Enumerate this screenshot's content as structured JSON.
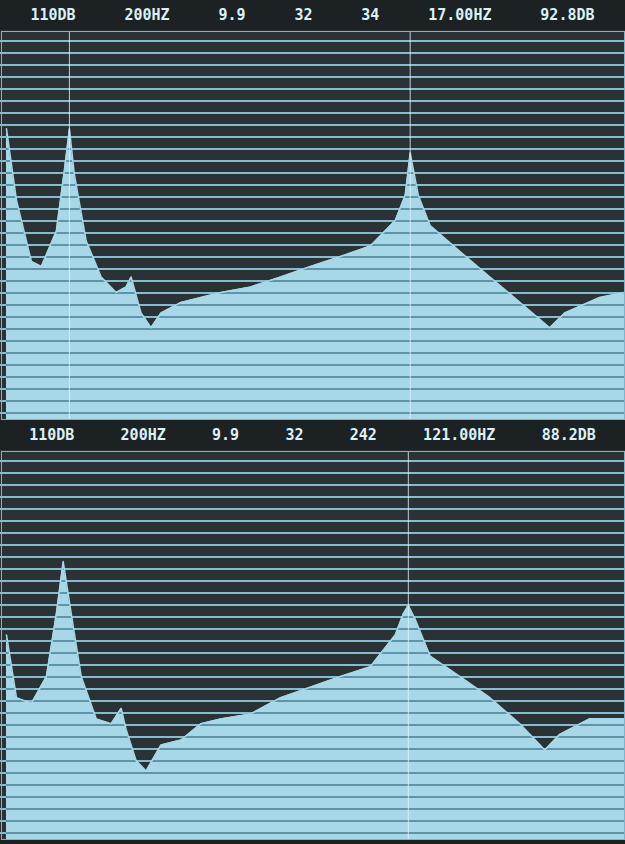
{
  "chart_data": [
    {
      "type": "area",
      "header": [
        "110DB",
        "200HZ",
        "9.9",
        "32",
        "34",
        "17.00HZ",
        "92.8DB"
      ],
      "x": [
        0.8,
        2.4,
        4.8,
        6.4,
        8.8,
        10.1,
        10.9,
        11.7,
        13.6,
        16,
        18.4,
        20,
        20.8,
        22.4,
        24,
        25.6,
        28.8,
        32,
        35.2,
        40,
        44.8,
        49.6,
        54.4,
        59.2,
        63.2,
        64.8,
        65.6,
        66.9,
        68.8,
        73.6,
        78.4,
        83.2,
        88,
        90.4,
        96,
        100
      ],
      "values": [
        96.2,
        86.1,
        77.4,
        76.7,
        81.7,
        90.4,
        96.2,
        89.7,
        80.3,
        75.2,
        73.0,
        73.8,
        75.2,
        70.1,
        68.0,
        70.1,
        71.6,
        72.3,
        73.0,
        73.8,
        75.2,
        76.7,
        78.1,
        79.6,
        83.2,
        86.8,
        92.8,
        86.8,
        82.5,
        78.8,
        75.2,
        71.6,
        68.0,
        70.1,
        72.3,
        73.0
      ],
      "cursor_x": [
        10.9,
        65.6
      ],
      "xlim": [
        0,
        100
      ],
      "ylim": [
        55,
        110
      ],
      "tick_labels": false,
      "grid": true,
      "color": "#a8d8e8"
    },
    {
      "type": "area",
      "header": [
        "110DB",
        "200HZ",
        "9.9",
        "32",
        "242",
        "121.00HZ",
        "88.2DB"
      ],
      "x": [
        0.8,
        2.4,
        4.8,
        7.2,
        8.8,
        9.9,
        11.2,
        12.8,
        15.2,
        17.6,
        19.2,
        20,
        21.6,
        23.2,
        25.6,
        28.8,
        32,
        35.2,
        40,
        44.8,
        49.6,
        54.4,
        59.2,
        63.2,
        64.5,
        65.3,
        66.4,
        68.8,
        73.6,
        78.4,
        83.2,
        87.2,
        89.6,
        94.4,
        100
      ],
      "values": [
        84.0,
        75.1,
        74.3,
        78.1,
        87.0,
        94.4,
        87.0,
        78.1,
        72.1,
        71.4,
        73.6,
        70.6,
        66.2,
        64.7,
        68.4,
        69.1,
        71.4,
        72.1,
        72.8,
        75.1,
        76.6,
        78.1,
        79.5,
        84.0,
        87.0,
        88.2,
        86.2,
        81.0,
        78.1,
        75.1,
        71.4,
        67.7,
        69.9,
        72.1,
        72.1
      ],
      "cursor_x": [
        65.3
      ],
      "xlim": [
        0,
        100
      ],
      "ylim": [
        55,
        110
      ],
      "tick_labels": false,
      "grid": true,
      "color": "#a8d8e8"
    }
  ]
}
